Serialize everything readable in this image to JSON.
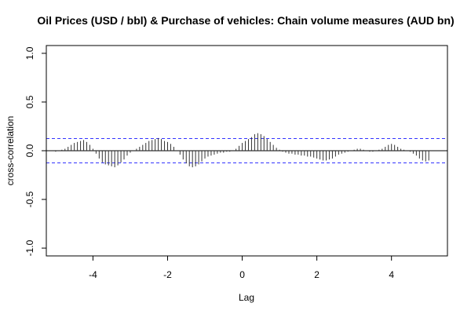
{
  "chart_data": {
    "type": "bar",
    "title": "Oil Prices (USD / bbl) & Purchase of vehicles: Chain volume measures (AUD bn)",
    "xlabel": "Lag",
    "ylabel": "cross-correlation",
    "xlim": [
      -5.25,
      5.5
    ],
    "ylim": [
      -1.08,
      1.08
    ],
    "x_ticks": [
      -4,
      -2,
      0,
      2,
      4
    ],
    "x_tick_labels": [
      "-4",
      "-2",
      "0",
      "2",
      "4"
    ],
    "y_ticks": [
      -1.0,
      -0.5,
      0.0,
      0.5,
      1.0
    ],
    "y_tick_labels": [
      "-1.0",
      "-0.5",
      "0.0",
      "0.5",
      "1.0"
    ],
    "confidence_band": 0.125,
    "lag_step": 0.0833,
    "lags": [
      -5.0,
      -4.9167,
      -4.8333,
      -4.75,
      -4.6667,
      -4.5833,
      -4.5,
      -4.4167,
      -4.3333,
      -4.25,
      -4.1667,
      -4.0833,
      -4.0,
      -3.9167,
      -3.8333,
      -3.75,
      -3.6667,
      -3.5833,
      -3.5,
      -3.4167,
      -3.3333,
      -3.25,
      -3.1667,
      -3.0833,
      -3.0,
      -2.9167,
      -2.8333,
      -2.75,
      -2.6667,
      -2.5833,
      -2.5,
      -2.4167,
      -2.3333,
      -2.25,
      -2.1667,
      -2.0833,
      -2.0,
      -1.9167,
      -1.8333,
      -1.75,
      -1.6667,
      -1.5833,
      -1.5,
      -1.4167,
      -1.3333,
      -1.25,
      -1.1667,
      -1.0833,
      -1.0,
      -0.9167,
      -0.8333,
      -0.75,
      -0.6667,
      -0.5833,
      -0.5,
      -0.4167,
      -0.3333,
      -0.25,
      -0.1667,
      -0.0833,
      0.0,
      0.0833,
      0.1667,
      0.25,
      0.3333,
      0.4167,
      0.5,
      0.5833,
      0.6667,
      0.75,
      0.8333,
      0.9167,
      1.0,
      1.0833,
      1.1667,
      1.25,
      1.3333,
      1.4167,
      1.5,
      1.5833,
      1.6667,
      1.75,
      1.8333,
      1.9167,
      2.0,
      2.0833,
      2.1667,
      2.25,
      2.3333,
      2.4167,
      2.5,
      2.5833,
      2.6667,
      2.75,
      2.8333,
      2.9167,
      3.0,
      3.0833,
      3.1667,
      3.25,
      3.3333,
      3.4167,
      3.5,
      3.5833,
      3.6667,
      3.75,
      3.8333,
      3.9167,
      4.0,
      4.0833,
      4.1667,
      4.25,
      4.3333,
      4.4167,
      4.5,
      4.5833,
      4.6667,
      4.75,
      4.8333,
      4.9167,
      5.0
    ],
    "values": [
      -0.01,
      0.0,
      0.01,
      0.02,
      0.04,
      0.06,
      0.08,
      0.09,
      0.1,
      0.11,
      0.09,
      0.06,
      0.02,
      -0.03,
      -0.08,
      -0.12,
      -0.14,
      -0.15,
      -0.16,
      -0.17,
      -0.15,
      -0.12,
      -0.09,
      -0.05,
      -0.02,
      0.0,
      0.02,
      0.04,
      0.06,
      0.08,
      0.1,
      0.11,
      0.12,
      0.13,
      0.12,
      0.1,
      0.09,
      0.07,
      0.04,
      0.0,
      -0.04,
      -0.09,
      -0.13,
      -0.16,
      -0.17,
      -0.16,
      -0.14,
      -0.11,
      -0.08,
      -0.06,
      -0.05,
      -0.04,
      -0.03,
      -0.02,
      -0.02,
      -0.01,
      -0.01,
      0.0,
      0.02,
      0.05,
      0.08,
      0.1,
      0.12,
      0.14,
      0.17,
      0.18,
      0.17,
      0.15,
      0.12,
      0.09,
      0.06,
      0.03,
      0.01,
      -0.01,
      -0.02,
      -0.03,
      -0.03,
      -0.04,
      -0.04,
      -0.05,
      -0.05,
      -0.06,
      -0.06,
      -0.07,
      -0.08,
      -0.09,
      -0.1,
      -0.1,
      -0.09,
      -0.08,
      -0.06,
      -0.04,
      -0.03,
      -0.02,
      -0.01,
      0.0,
      0.01,
      0.02,
      0.02,
      0.01,
      0.0,
      -0.01,
      -0.01,
      0.0,
      0.01,
      0.02,
      0.04,
      0.06,
      0.07,
      0.06,
      0.04,
      0.02,
      0.01,
      0.0,
      -0.01,
      -0.03,
      -0.05,
      -0.08,
      -0.1,
      -0.11,
      -0.1
    ],
    "colors": {
      "bars": "#333333",
      "confidence_band": "#3333ff",
      "zero_line": "#000000",
      "frame": "#000000"
    },
    "grid": false
  }
}
